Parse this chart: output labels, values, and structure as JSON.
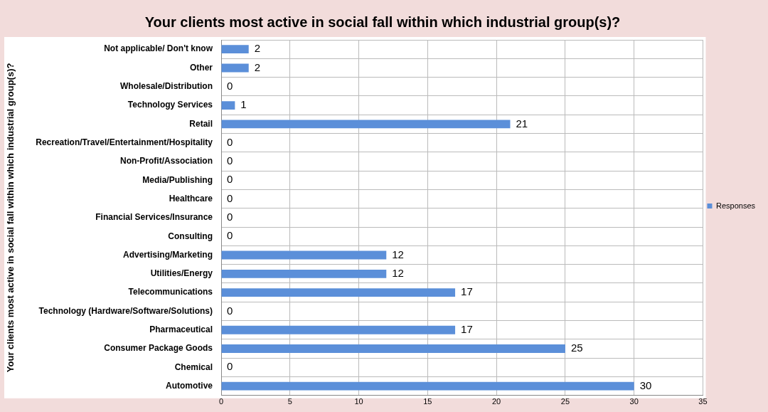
{
  "chart_data": {
    "type": "bar",
    "orientation": "horizontal",
    "title": "Your clients most active in social fall within which industrial group(s)?",
    "ylabel": "Your clients most active in social fall within which industrial group(s)?",
    "categories": [
      "Not applicable/ Don't know",
      "Other",
      "Wholesale/Distribution",
      "Technology Services",
      "Retail",
      "Recreation/Travel/Entertainment/Hospitality",
      "Non-Profit/Association",
      "Media/Publishing",
      "Healthcare",
      "Financial Services/Insurance",
      "Consulting",
      "Advertising/Marketing",
      "Utilities/Energy",
      "Telecommunications",
      "Technology (Hardware/Software/Solutions)",
      "Pharmaceutical",
      "Consumer Package Goods",
      "Chemical",
      "Automotive"
    ],
    "series": [
      {
        "name": "Responses",
        "color": "#5b8fd9",
        "values": [
          2,
          2,
          0,
          1,
          21,
          0,
          0,
          0,
          0,
          0,
          0,
          12,
          12,
          17,
          0,
          17,
          25,
          0,
          30
        ]
      }
    ],
    "xlim": [
      0,
      35
    ],
    "xticks": [
      0,
      5,
      10,
      15,
      20,
      25,
      30,
      35
    ],
    "grid": true,
    "legend": "right",
    "data_labels": true
  }
}
